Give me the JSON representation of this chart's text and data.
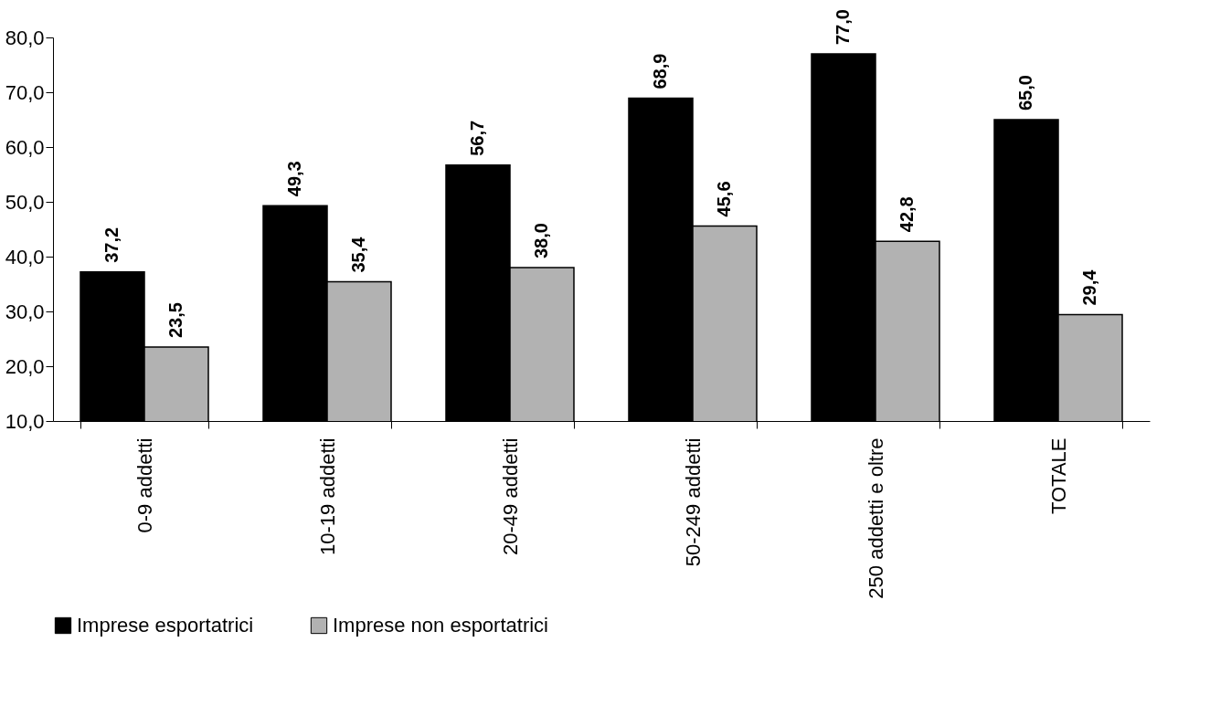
{
  "chart_data": {
    "type": "bar",
    "categories": [
      "0-9 addetti",
      "10-19 addetti",
      "20-49 addetti",
      "50-249 addetti",
      "250 addetti e oltre",
      "TOTALE"
    ],
    "series": [
      {
        "name": "Imprese esportatrici",
        "color": "#000000",
        "values": [
          37.2,
          49.3,
          56.7,
          68.9,
          77.0,
          65.0
        ],
        "value_labels": [
          "37,2",
          "49,3",
          "56,7",
          "68,9",
          "77,0",
          "65,0"
        ]
      },
      {
        "name": "Imprese non esportatrici",
        "color": "#b2b2b2",
        "values": [
          23.5,
          35.4,
          38.0,
          45.6,
          42.8,
          29.4
        ],
        "value_labels": [
          "23,5",
          "35,4",
          "38,0",
          "45,6",
          "42,8",
          "29,4"
        ]
      }
    ],
    "ylim": [
      10,
      80
    ],
    "yticks": [
      {
        "value": 10,
        "label": "10,0"
      },
      {
        "value": 20,
        "label": "20,0"
      },
      {
        "value": 30,
        "label": "30,0"
      },
      {
        "value": 40,
        "label": "40,0"
      },
      {
        "value": 50,
        "label": "50,0"
      },
      {
        "value": 60,
        "label": "60,0"
      },
      {
        "value": 70,
        "label": "70,0"
      },
      {
        "value": 80,
        "label": "80,0"
      }
    ],
    "grid": false,
    "legend": "bottom"
  }
}
